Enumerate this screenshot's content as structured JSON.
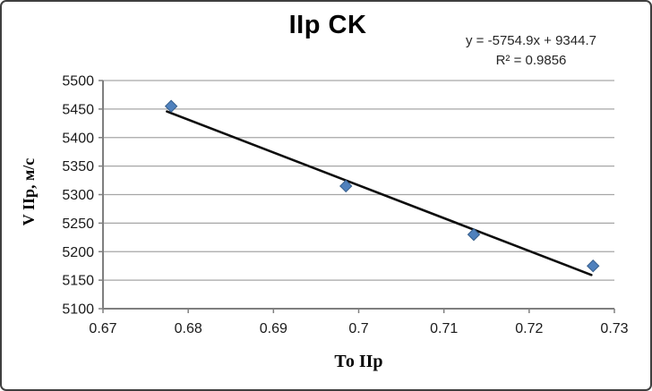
{
  "chart": {
    "title": "IIp CK",
    "equation_line1": "y = -5754.9x + 9344.7",
    "equation_line2": "R² = 0.9856"
  },
  "chart_data": {
    "type": "scatter",
    "title": "IIp CK",
    "xlabel": "То IIp",
    "ylabel": "V IIp, м/с",
    "x": [
      0.678,
      0.6985,
      0.7135,
      0.7275
    ],
    "y": [
      5455,
      5315,
      5230,
      5175
    ],
    "series_name": "IIp CK",
    "trendline": {
      "type": "linear",
      "slope": -5754.9,
      "intercept": 9344.7,
      "r2": 0.9856,
      "equation_label": "y = -5754.9x + 9344.7",
      "r2_label": "R² = 0.9856",
      "x_range": [
        0.6775,
        0.7273
      ]
    },
    "xlim": [
      0.67,
      0.73
    ],
    "ylim": [
      5100,
      5500
    ],
    "x_tick_labels": [
      "0.67",
      "0.68",
      "0.69",
      "0.7",
      "0.71",
      "0.72",
      "0.73"
    ],
    "y_tick_labels": [
      "5100",
      "5150",
      "5200",
      "5250",
      "5300",
      "5350",
      "5400",
      "5450",
      "5500"
    ],
    "grid": "horizontal-only",
    "legend": "none",
    "marker": "diamond",
    "colors": {
      "marker_fill": "#4f81bd",
      "marker_stroke": "#355d8a",
      "trendline": "#0d0d0d",
      "gridline": "#a6a6a6",
      "axis": "#7f7f7f",
      "tick_text": "#1a1a1a",
      "title_text": "#000000"
    }
  }
}
